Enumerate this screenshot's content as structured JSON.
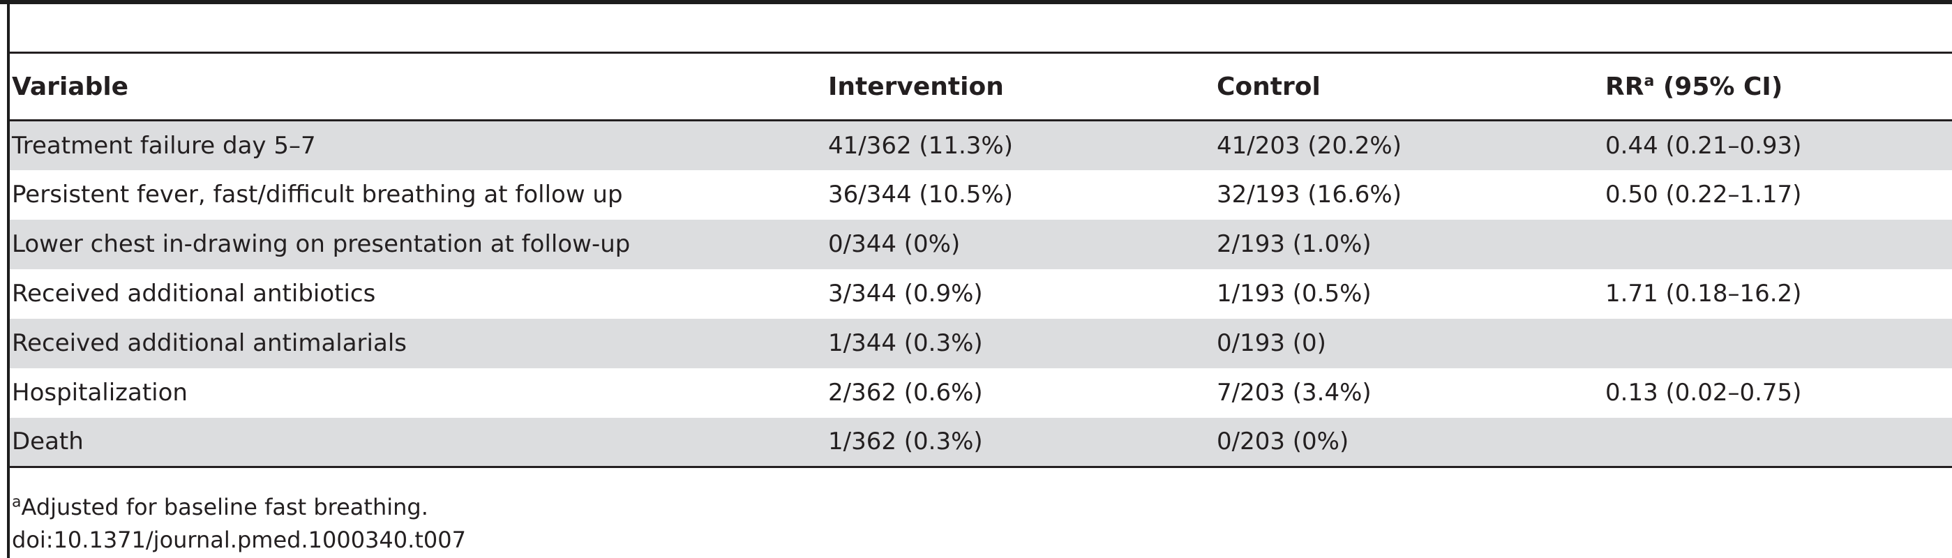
{
  "table": {
    "headers": {
      "variable": "Variable",
      "intervention": "Intervention",
      "control": "Control",
      "rr_main": "RR",
      "rr_sup": "a",
      "rr_ci": " (95% CI)"
    },
    "rows": [
      {
        "variable": "Treatment failure day 5–7",
        "intervention": "41/362 (11.3%)",
        "control": "41/203 (20.2%)",
        "rr": "0.44 (0.21–0.93)"
      },
      {
        "variable": "Persistent fever, fast/difficult breathing at follow up",
        "intervention": "36/344 (10.5%)",
        "control": "32/193 (16.6%)",
        "rr": "0.50 (0.22–1.17)"
      },
      {
        "variable": "Lower chest in-drawing on presentation at follow-up",
        "intervention": "0/344 (0%)",
        "control": "2/193 (1.0%)",
        "rr": ""
      },
      {
        "variable": "Received additional antibiotics",
        "intervention": "3/344 (0.9%)",
        "control": "1/193 (0.5%)",
        "rr": "1.71 (0.18–16.2)"
      },
      {
        "variable": "Received additional antimalarials",
        "intervention": "1/344 (0.3%)",
        "control": "0/193 (0)",
        "rr": ""
      },
      {
        "variable": "Hospitalization",
        "intervention": "2/362 (0.6%)",
        "control": "7/203 (3.4%)",
        "rr": "0.13 (0.02–0.75)"
      },
      {
        "variable": "Death",
        "intervention": "1/362 (0.3%)",
        "control": "0/203 (0%)",
        "rr": ""
      }
    ]
  },
  "footnotes": {
    "marker": "a",
    "note": "Adjusted for baseline fast breathing.",
    "doi": "doi:10.1371/journal.pmed.1000340.t007"
  },
  "colors": {
    "shade": "#dcdddf",
    "rule": "#231f20"
  }
}
